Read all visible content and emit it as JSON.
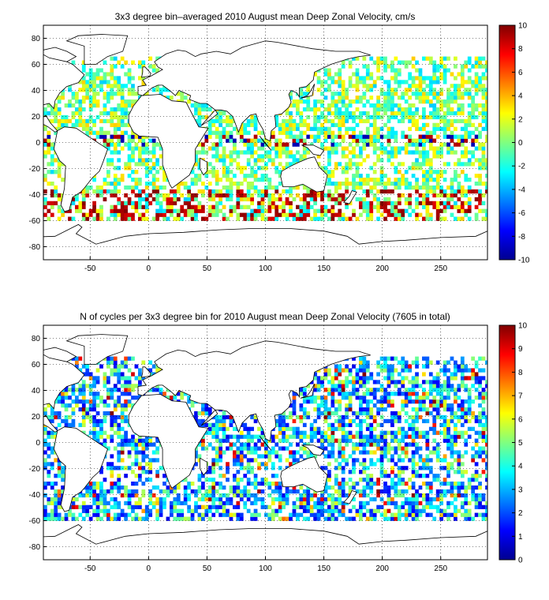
{
  "panels": [
    {
      "title": "3x3 degree bin–averaged 2010 August mean Deep Zonal Velocity, cm/s",
      "x_ticks": [
        "-50",
        "0",
        "50",
        "100",
        "150",
        "200",
        "250"
      ],
      "y_ticks": [
        "80",
        "60",
        "40",
        "20",
        "0",
        "-20",
        "-40",
        "-60",
        "-80"
      ],
      "colorbar_ticks": [
        "10",
        "8",
        "6",
        "4",
        "2",
        "0",
        "-2",
        "-4",
        "-6",
        "-8",
        "-10"
      ]
    },
    {
      "title": "N of cycles per 3x3 degree bin for 2010 August mean Deep Zonal Velocity (7605 in total)",
      "x_ticks": [
        "-50",
        "0",
        "50",
        "100",
        "150",
        "200",
        "250"
      ],
      "y_ticks": [
        "80",
        "60",
        "40",
        "20",
        "0",
        "-20",
        "-40",
        "-60",
        "-80"
      ],
      "colorbar_ticks": [
        "10",
        "9",
        "8",
        "7",
        "6",
        "5",
        "4",
        "3",
        "2",
        "1",
        "0"
      ]
    }
  ],
  "chart_data": [
    {
      "type": "heatmap",
      "title": "3x3 degree bin–averaged 2010 August mean Deep Zonal Velocity, cm/s",
      "x_range": [
        -90,
        290
      ],
      "y_range": [
        -90,
        90
      ],
      "bin_size_deg": 3,
      "colorbar_range": [
        -10,
        10
      ],
      "colormap": "jet",
      "grid": true
    },
    {
      "type": "heatmap",
      "title": "N of cycles per 3x3 degree bin for 2010 August mean Deep Zonal Velocity (7605 in total)",
      "x_range": [
        -90,
        290
      ],
      "y_range": [
        -90,
        90
      ],
      "bin_size_deg": 3,
      "colorbar_range": [
        0,
        10
      ],
      "colormap": "jet",
      "grid": true
    }
  ]
}
